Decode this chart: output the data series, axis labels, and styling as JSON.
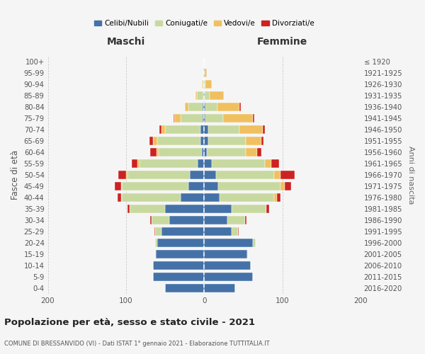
{
  "age_groups": [
    "0-4",
    "5-9",
    "10-14",
    "15-19",
    "20-24",
    "25-29",
    "30-34",
    "35-39",
    "40-44",
    "45-49",
    "50-54",
    "55-59",
    "60-64",
    "65-69",
    "70-74",
    "75-79",
    "80-84",
    "85-89",
    "90-94",
    "95-99",
    "100+"
  ],
  "birth_years": [
    "2016-2020",
    "2011-2015",
    "2006-2010",
    "2001-2005",
    "1996-2000",
    "1991-1995",
    "1986-1990",
    "1981-1985",
    "1976-1980",
    "1971-1975",
    "1966-1970",
    "1961-1965",
    "1956-1960",
    "1951-1955",
    "1946-1950",
    "1941-1945",
    "1936-1940",
    "1931-1935",
    "1926-1930",
    "1921-1925",
    "≤ 1920"
  ],
  "maschi": {
    "celibi": [
      50,
      65,
      65,
      62,
      60,
      55,
      45,
      50,
      30,
      20,
      18,
      8,
      3,
      5,
      5,
      2,
      2,
      1,
      0,
      1,
      0
    ],
    "coniugati": [
      0,
      0,
      0,
      1,
      3,
      8,
      22,
      45,
      75,
      85,
      80,
      75,
      55,
      55,
      45,
      28,
      18,
      8,
      2,
      0,
      0
    ],
    "vedovi": [
      0,
      0,
      0,
      0,
      0,
      0,
      0,
      0,
      1,
      1,
      2,
      2,
      3,
      5,
      5,
      8,
      5,
      2,
      1,
      0,
      0
    ],
    "divorziati": [
      0,
      0,
      0,
      0,
      0,
      1,
      2,
      3,
      5,
      8,
      10,
      8,
      8,
      5,
      2,
      1,
      0,
      0,
      0,
      0,
      0
    ]
  },
  "femmine": {
    "nubili": [
      40,
      62,
      60,
      55,
      62,
      35,
      30,
      35,
      20,
      18,
      15,
      10,
      3,
      5,
      5,
      2,
      2,
      1,
      0,
      1,
      0
    ],
    "coniugate": [
      0,
      0,
      0,
      1,
      4,
      8,
      22,
      45,
      70,
      80,
      75,
      68,
      50,
      48,
      40,
      22,
      15,
      6,
      2,
      0,
      0
    ],
    "vedove": [
      0,
      0,
      0,
      0,
      0,
      0,
      0,
      0,
      3,
      5,
      8,
      8,
      15,
      20,
      30,
      38,
      28,
      18,
      8,
      2,
      0
    ],
    "divorziate": [
      0,
      0,
      0,
      0,
      0,
      1,
      2,
      3,
      5,
      8,
      18,
      10,
      5,
      3,
      3,
      2,
      2,
      0,
      0,
      0,
      0
    ]
  },
  "colors": {
    "celibi": "#4472a8",
    "coniugati": "#c8d9a0",
    "vedovi": "#f0c060",
    "divorziati": "#cc2222"
  },
  "xlim": 200,
  "title": "Popolazione per età, sesso e stato civile - 2021",
  "subtitle": "COMUNE DI BRESSANVIDO (VI) - Dati ISTAT 1° gennaio 2021 - Elaborazione TUTTITALIA.IT",
  "ylabel_left": "Fasce di età",
  "ylabel_right": "Anni di nascita",
  "xlabel_left": "Maschi",
  "xlabel_right": "Femmine",
  "bg_color": "#f5f5f5",
  "grid_color": "#c8c8c8"
}
